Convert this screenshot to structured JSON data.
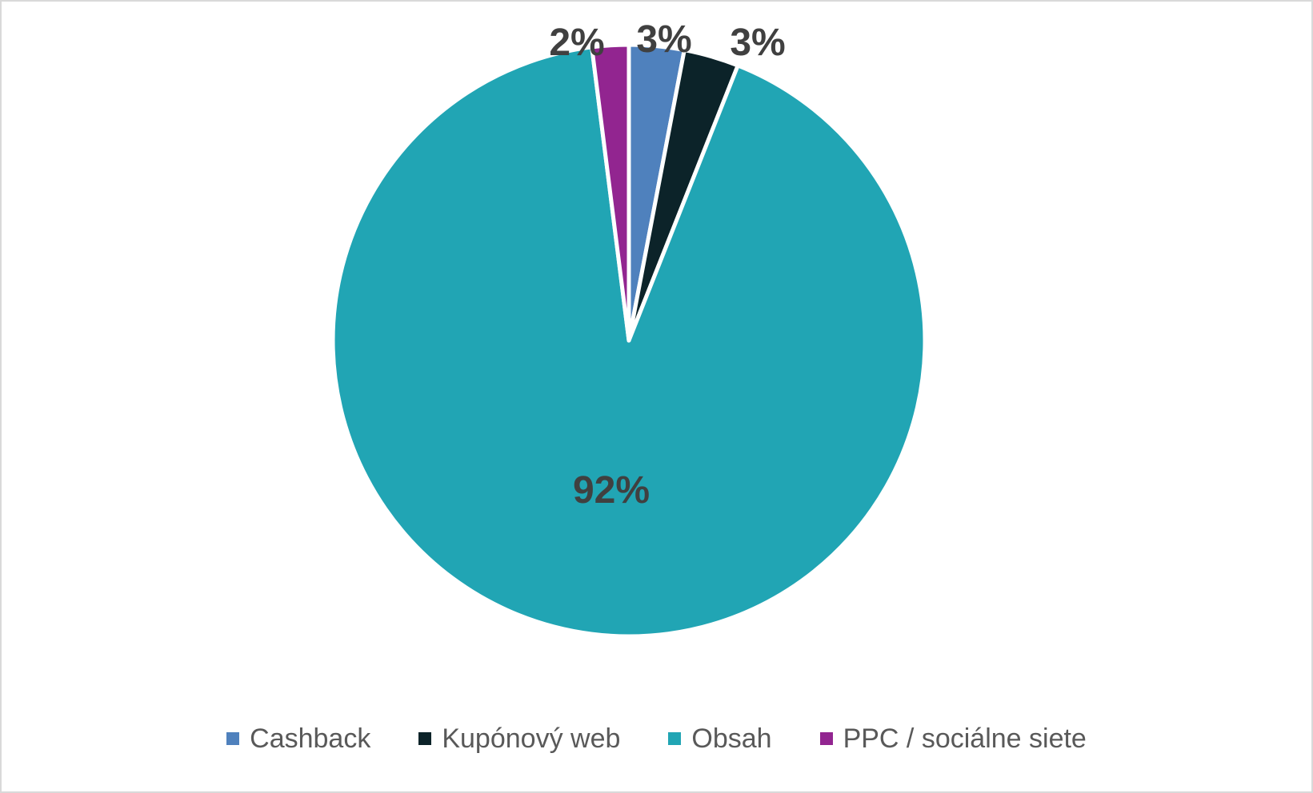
{
  "chart_data": {
    "type": "pie",
    "series": [
      {
        "labels": [
          "Cashback",
          "Kupónový web",
          "Obsah",
          "PPC / sociálne siete"
        ],
        "values": [
          3,
          3,
          92,
          2
        ],
        "data_labels": [
          "3%",
          "3%",
          "92%",
          "2%"
        ],
        "colors": [
          "#4f81bd",
          "#0c2329",
          "#21a5b4",
          "#922590"
        ]
      }
    ],
    "legend": {
      "position": "bottom",
      "entries": [
        "Cashback",
        "Kupónový web",
        "Obsah",
        "PPC / sociálne siete"
      ]
    },
    "title": "",
    "start_angle_deg": 0,
    "direction": "clockwise"
  }
}
